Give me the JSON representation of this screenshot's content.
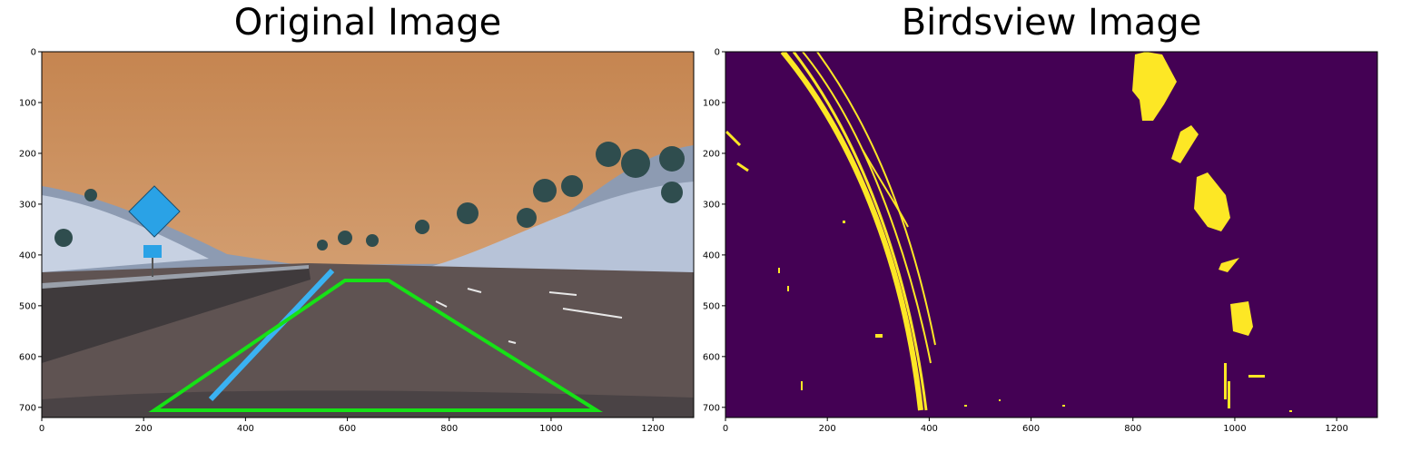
{
  "chart_data": [
    {
      "type": "image",
      "title": "Original Image",
      "xlim": [
        0,
        1280
      ],
      "ylim": [
        720,
        0
      ],
      "xticks": [
        0,
        200,
        400,
        600,
        800,
        1000,
        1200
      ],
      "yticks": [
        0,
        100,
        200,
        300,
        400,
        500,
        600,
        700
      ]
    },
    {
      "type": "image",
      "title": "Birdsview Image",
      "xlim": [
        0,
        1280
      ],
      "ylim": [
        720,
        0
      ],
      "xticks": [
        0,
        200,
        400,
        600,
        800,
        1000,
        1200
      ],
      "yticks": [
        0,
        100,
        200,
        300,
        400,
        500,
        600,
        700
      ]
    }
  ]
}
